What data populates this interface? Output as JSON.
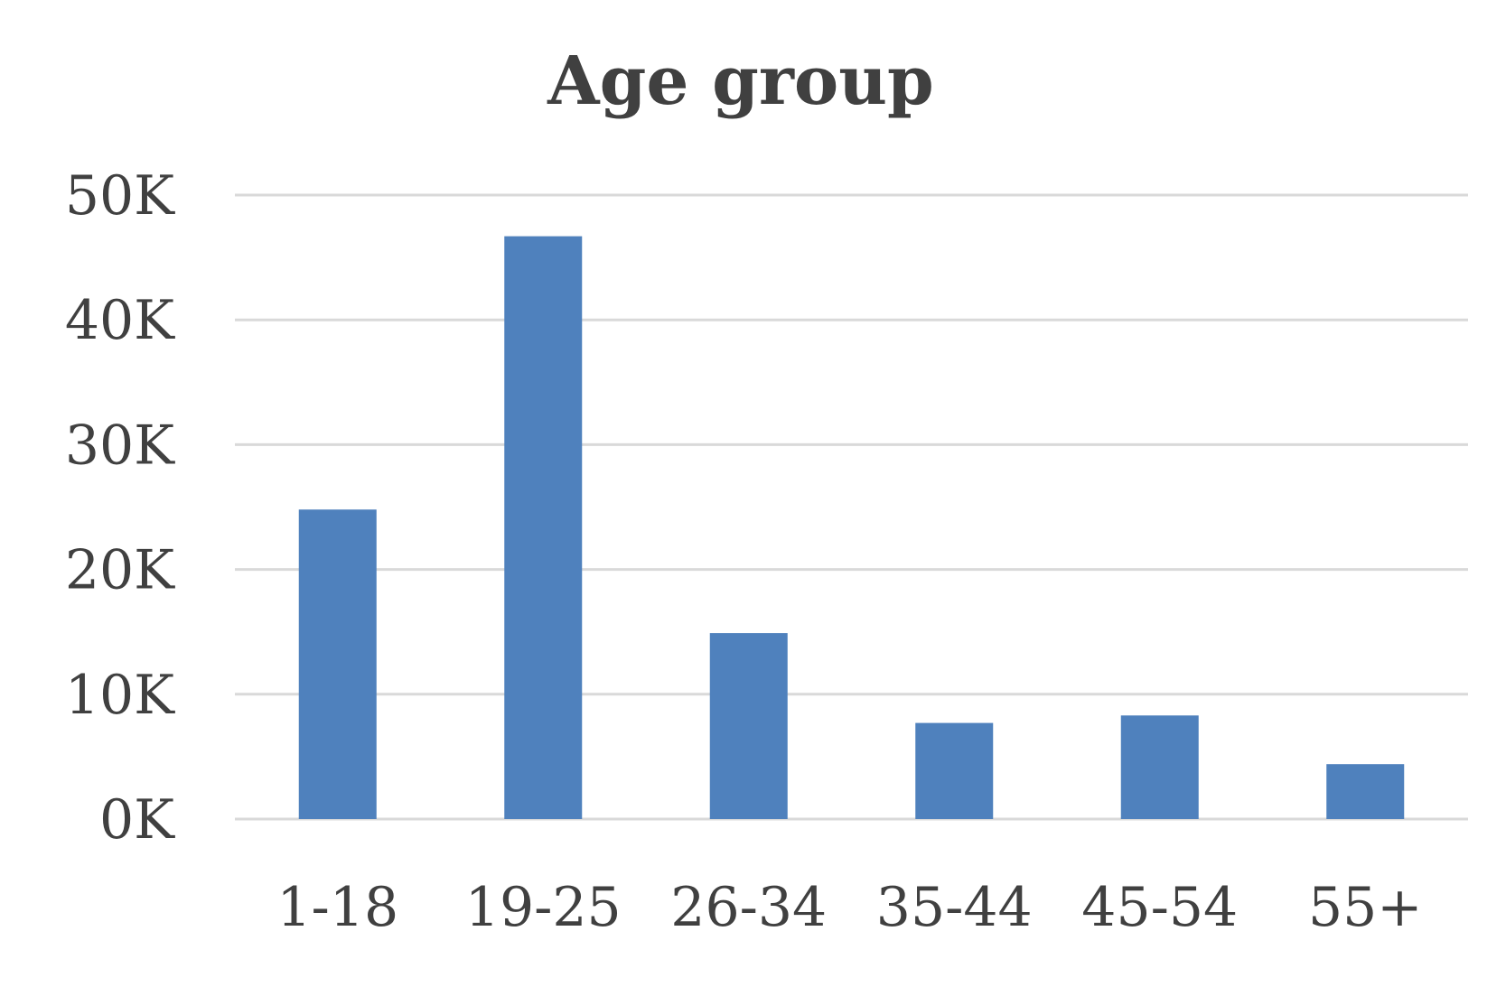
{
  "chart_data": {
    "type": "bar",
    "title": "Age group",
    "xlabel": "",
    "ylabel": "",
    "categories": [
      "1-18",
      "19-25",
      "26-34",
      "35-44",
      "45-54",
      "55+"
    ],
    "values": [
      24800,
      46700,
      14900,
      7700,
      8300,
      4400
    ],
    "ylim": [
      0,
      50000
    ],
    "yticks": [
      {
        "value": 0,
        "label": "0K"
      },
      {
        "value": 10000,
        "label": "10K"
      },
      {
        "value": 20000,
        "label": "20K"
      },
      {
        "value": 30000,
        "label": "30K"
      },
      {
        "value": 40000,
        "label": "40K"
      },
      {
        "value": 50000,
        "label": "50K"
      }
    ],
    "grid": true,
    "legend": "none",
    "bar_color": "#4f81bd",
    "text_color": "#404040",
    "grid_color": "#d9d9d9"
  }
}
